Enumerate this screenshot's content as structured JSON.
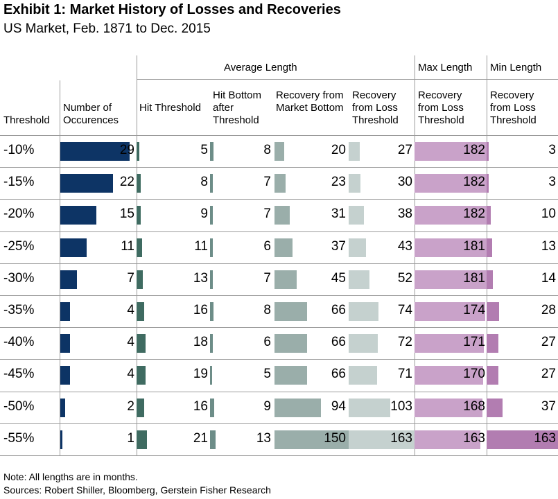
{
  "title": "Exhibit 1: Market History of Losses and Recoveries",
  "subtitle": "US Market, Feb. 1871 to Dec. 2015",
  "group_headers": {
    "average": "Average Length",
    "max": "Max Length",
    "min": "Min Length"
  },
  "columns": [
    {
      "key": "threshold",
      "label": "Threshold"
    },
    {
      "key": "occurrences",
      "label": "Number of Occurences"
    },
    {
      "key": "hit_threshold",
      "label": "Hit Threshold"
    },
    {
      "key": "hit_bottom",
      "label": "Hit Bottom after Threshold"
    },
    {
      "key": "recovery_market_bottom",
      "label": "Recovery from Market Bottom"
    },
    {
      "key": "recovery_loss_threshold_avg",
      "label": "Recovery from Loss Threshold"
    },
    {
      "key": "recovery_loss_threshold_max",
      "label": "Recovery from Loss Threshold"
    },
    {
      "key": "recovery_loss_threshold_min",
      "label": "Recovery from Loss Threshold"
    }
  ],
  "chart_data": {
    "type": "table",
    "title": "Exhibit 1: Market History of Losses and Recoveries",
    "subtitle": "US Market, Feb. 1871 to Dec. 2015",
    "thresholds": [
      "-10%",
      "-15%",
      "-20%",
      "-25%",
      "-30%",
      "-35%",
      "-40%",
      "-45%",
      "-50%",
      "-55%"
    ],
    "occurrences": [
      29,
      22,
      15,
      11,
      7,
      4,
      4,
      4,
      2,
      1
    ],
    "hit_threshold": [
      5,
      8,
      9,
      11,
      13,
      16,
      18,
      19,
      16,
      21
    ],
    "hit_bottom": [
      8,
      7,
      7,
      6,
      7,
      8,
      6,
      5,
      9,
      13
    ],
    "recovery_market_bottom": [
      20,
      23,
      31,
      37,
      45,
      66,
      66,
      66,
      94,
      150
    ],
    "recovery_loss_threshold_avg": [
      27,
      30,
      38,
      43,
      52,
      74,
      72,
      71,
      103,
      163
    ],
    "recovery_loss_threshold_max": [
      182,
      182,
      182,
      181,
      181,
      174,
      171,
      170,
      168,
      163
    ],
    "recovery_loss_threshold_min": [
      3,
      3,
      10,
      13,
      14,
      28,
      27,
      27,
      37,
      163
    ],
    "colors": {
      "occurrences": "#0d3465",
      "hit_threshold": "#3f6b61",
      "hit_bottom": "#6d8d88",
      "recovery_market_bottom": "#9aaeaa",
      "recovery_loss_threshold_avg": "#c5d1cf",
      "recovery_loss_threshold_max": "#c9a2c9",
      "recovery_loss_threshold_min": "#b27db1"
    }
  },
  "notes": {
    "note": "Note: All lengths are in months.",
    "sources": "Sources: Robert Shiller, Bloomberg, Gerstein Fisher Research"
  }
}
